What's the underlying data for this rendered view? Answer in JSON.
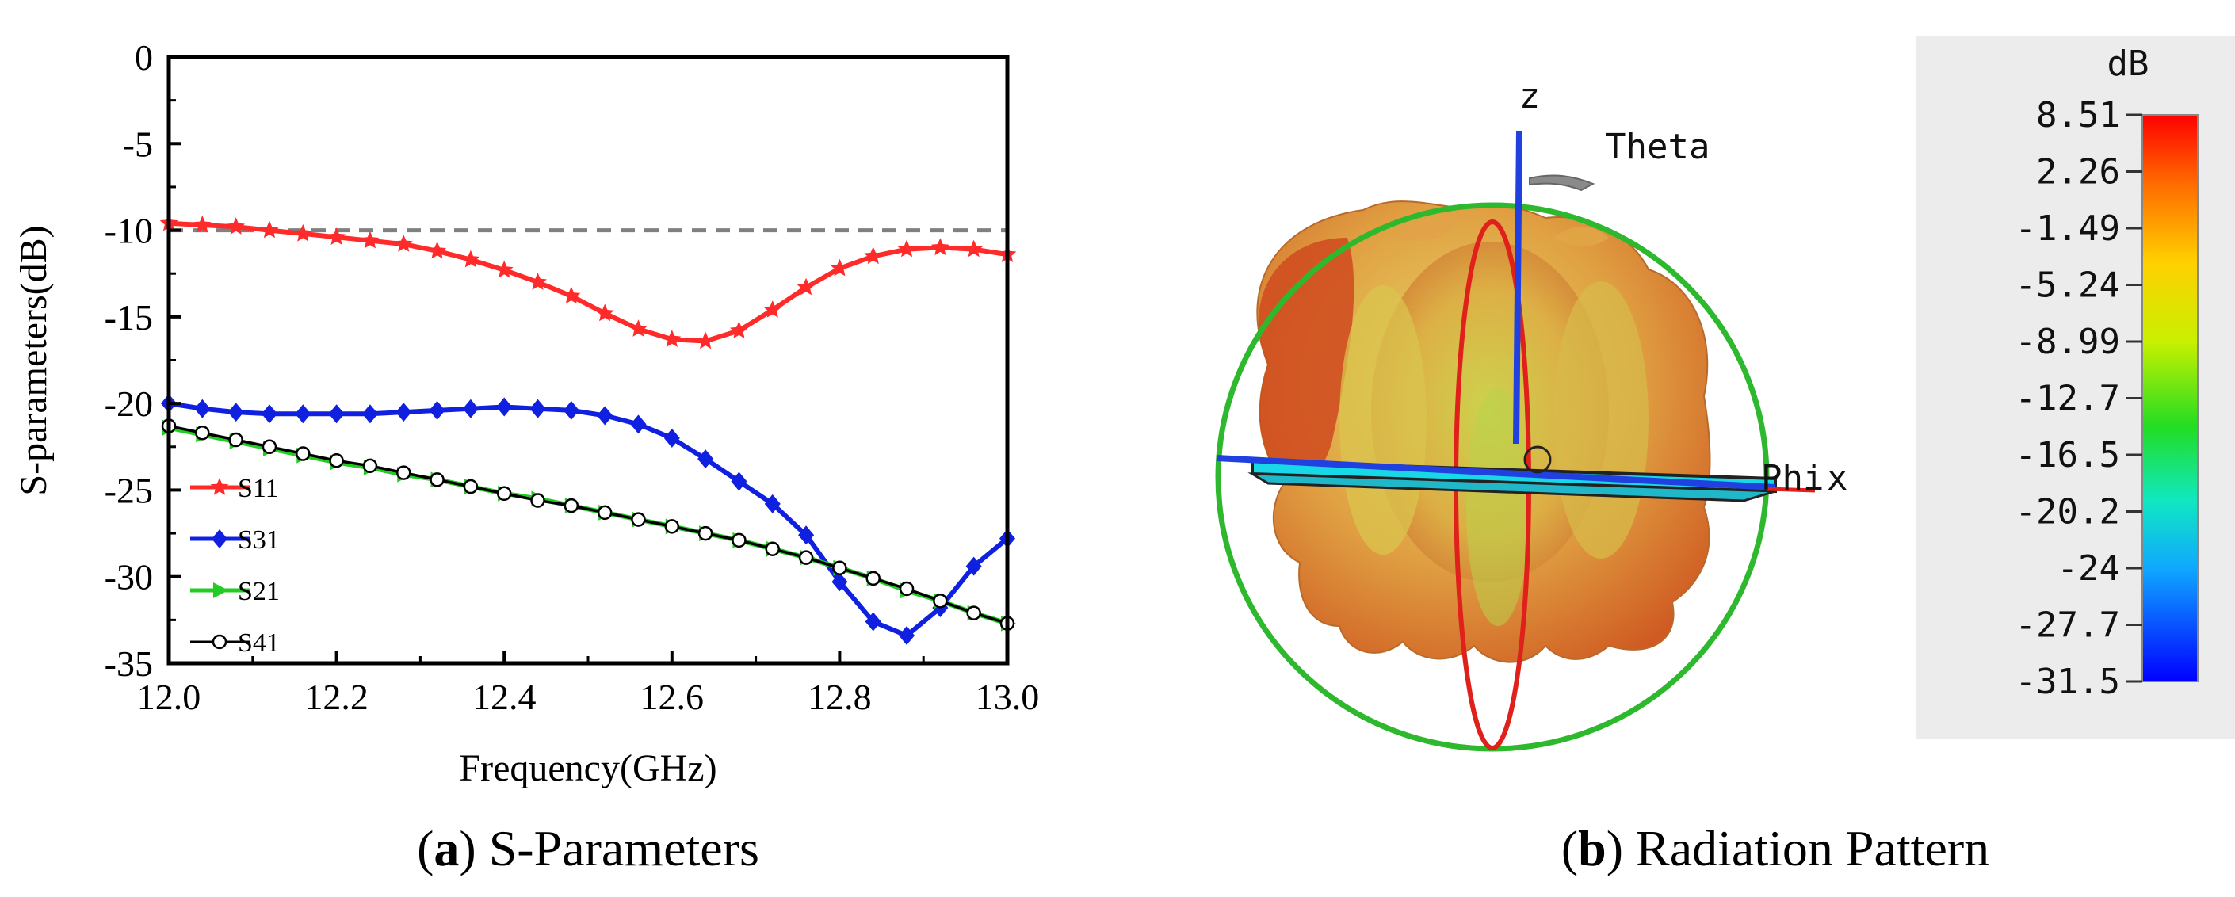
{
  "chart_data": [
    {
      "type": "line",
      "title": "",
      "xlabel": "Frequency(GHz)",
      "ylabel": "S-parameters(dB)",
      "xlim": [
        12.0,
        13.0
      ],
      "ylim": [
        -35,
        0
      ],
      "xticks": [
        "12.0",
        "12.2",
        "12.4",
        "12.6",
        "12.8",
        "13.0"
      ],
      "yticks": [
        "0",
        "-5",
        "-10",
        "-15",
        "-20",
        "-25",
        "-30",
        "-35"
      ],
      "reference_line": {
        "y": -10,
        "style": "dashed",
        "color": "#808080"
      },
      "legend_position": "bottom-left",
      "x": [
        12.0,
        12.04,
        12.08,
        12.12,
        12.16,
        12.2,
        12.24,
        12.28,
        12.32,
        12.36,
        12.4,
        12.44,
        12.48,
        12.52,
        12.56,
        12.6,
        12.64,
        12.68,
        12.72,
        12.76,
        12.8,
        12.84,
        12.88,
        12.92,
        12.96,
        13.0
      ],
      "series": [
        {
          "name": "S11",
          "color": "#ff2a2a",
          "marker": "star",
          "values": [
            -9.6,
            -9.7,
            -9.8,
            -10.0,
            -10.2,
            -10.4,
            -10.6,
            -10.8,
            -11.2,
            -11.7,
            -12.3,
            -13.0,
            -13.8,
            -14.8,
            -15.7,
            -16.3,
            -16.4,
            -15.8,
            -14.6,
            -13.3,
            -12.2,
            -11.5,
            -11.1,
            -11.0,
            -11.1,
            -11.4
          ]
        },
        {
          "name": "S31",
          "color": "#1020e0",
          "marker": "diamond",
          "values": [
            -20.0,
            -20.3,
            -20.5,
            -20.6,
            -20.6,
            -20.6,
            -20.6,
            -20.5,
            -20.4,
            -20.3,
            -20.2,
            -20.3,
            -20.4,
            -20.7,
            -21.2,
            -22.0,
            -23.2,
            -24.5,
            -25.8,
            -27.6,
            -30.3,
            -32.6,
            -33.4,
            -31.8,
            -29.4,
            -27.8
          ]
        },
        {
          "name": "S21",
          "color": "#22cc22",
          "marker": "triangle-right",
          "values": [
            -21.4,
            -21.8,
            -22.2,
            -22.6,
            -23.0,
            -23.4,
            -23.7,
            -24.1,
            -24.4,
            -24.8,
            -25.2,
            -25.5,
            -25.9,
            -26.3,
            -26.7,
            -27.1,
            -27.5,
            -27.9,
            -28.4,
            -28.9,
            -29.5,
            -30.1,
            -30.8,
            -31.4,
            -32.1,
            -32.7
          ]
        },
        {
          "name": "S41",
          "color": "#000000",
          "marker": "circle-open",
          "values": [
            -21.3,
            -21.7,
            -22.1,
            -22.5,
            -22.9,
            -23.3,
            -23.6,
            -24.0,
            -24.4,
            -24.8,
            -25.2,
            -25.6,
            -25.9,
            -26.3,
            -26.7,
            -27.1,
            -27.5,
            -27.9,
            -28.4,
            -28.9,
            -29.5,
            -30.1,
            -30.7,
            -31.4,
            -32.1,
            -32.7
          ]
        }
      ],
      "caption": {
        "letter": "a",
        "text": " S-Parameters"
      }
    },
    {
      "type": "other",
      "subtype": "3d-radiation-pattern",
      "axis_labels": {
        "z": "z",
        "theta": "Theta",
        "phi": "Phi",
        "x": "x"
      },
      "colorbar": {
        "unit": "dB",
        "ticks": [
          "8.51",
          "2.26",
          "-1.49",
          "-5.24",
          "-8.99",
          "-12.7",
          "-16.5",
          "-20.2",
          "-24",
          "-27.7",
          "-31.5"
        ],
        "max": 8.51,
        "min": -31.5
      },
      "caption": {
        "letter": "b",
        "text": " Radiation Pattern"
      }
    }
  ]
}
